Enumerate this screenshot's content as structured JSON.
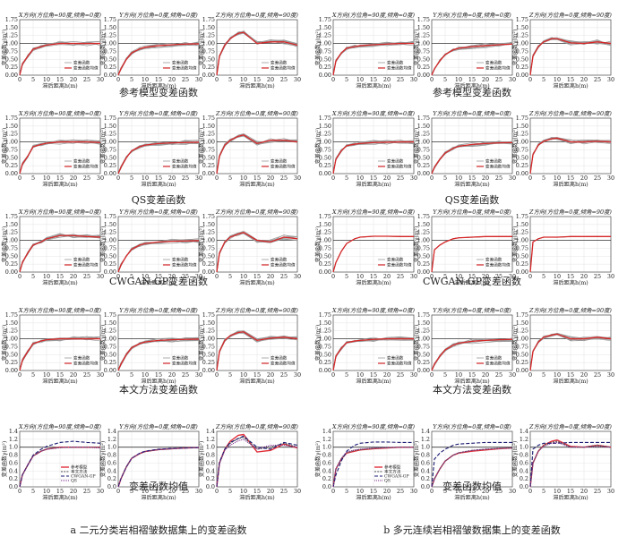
{
  "captions": {
    "left": [
      "参考模型变差函数",
      "QS变差函数",
      "CWGAN-GP变差函数",
      "本文方法变差函数",
      "变差函数均值"
    ],
    "right": [
      "参考模型变差函数",
      "QS变差函数",
      "CWGAN-GP变差函数",
      "本文方法变差函数",
      "变差函数均值"
    ]
  },
  "bottom": {
    "left": "a  二元分类岩相褶皱数据集上的变差函数",
    "right": "b  多元连续岩相褶皱数据集上的变差函数"
  },
  "panel_titles": [
    "X方向(方位角=90度,倾角=0度)",
    "Y方向(方位角=0度,倾角=0度)",
    "Z方向(方位角=0度,倾角=90度)"
  ],
  "axis": {
    "xlabel": "滞后距离h(m)",
    "ylabel": "变差函数γ(m²)",
    "xticks": [
      "0",
      "5",
      "10",
      "15",
      "20",
      "25",
      "30"
    ],
    "yticks_main": [
      "0.00",
      "0.25",
      "0.50",
      "0.75",
      "1.00",
      "1.25",
      "1.50",
      "1.75"
    ],
    "yticks_mean": [
      "0.0",
      "0.2",
      "0.4",
      "0.6",
      "0.8",
      "1.0",
      "1.2",
      "1.4"
    ]
  },
  "legend": {
    "realization": "变差函数",
    "mean": "变差函数均值",
    "mean_series": [
      "参考模型",
      "本文方法",
      "CWGAN-GP",
      "QS"
    ]
  },
  "colors": {
    "realization": "#9a9a9a",
    "mean": "#d62728",
    "reference": "#e0303c",
    "ours": "#555555",
    "cwgan": "#1a1a70",
    "qs": "#7a2a8a"
  },
  "chart_data": [
    {
      "id": "a-ref",
      "type": "line",
      "group": "a",
      "row": "参考模型变差函数",
      "xlim": [
        0,
        30
      ],
      "ylim": [
        0,
        1.75
      ],
      "x": [
        0,
        1,
        3,
        5,
        8,
        10,
        15,
        20,
        25,
        30
      ],
      "panels": [
        {
          "dir": "X",
          "mean": [
            0,
            0.35,
            0.6,
            0.82,
            0.9,
            0.95,
            1.0,
            1.0,
            1.0,
            1.0
          ]
        },
        {
          "dir": "Y",
          "mean": [
            0,
            0.2,
            0.5,
            0.7,
            0.83,
            0.88,
            0.93,
            0.96,
            0.98,
            0.99
          ]
        },
        {
          "dir": "Z",
          "mean": [
            0,
            0.6,
            0.95,
            1.15,
            1.32,
            1.35,
            1.0,
            1.05,
            1.05,
            0.95
          ]
        }
      ]
    },
    {
      "id": "a-qs",
      "type": "line",
      "group": "a",
      "row": "QS变差函数",
      "xlim": [
        0,
        30
      ],
      "ylim": [
        0,
        1.75
      ],
      "x": [
        0,
        1,
        3,
        5,
        8,
        10,
        15,
        20,
        25,
        30
      ],
      "panels": [
        {
          "dir": "X",
          "mean": [
            0,
            0.3,
            0.55,
            0.85,
            0.92,
            0.96,
            1.0,
            1.0,
            1.0,
            0.98
          ]
        },
        {
          "dir": "Y",
          "mean": [
            0,
            0.2,
            0.5,
            0.72,
            0.85,
            0.9,
            0.95,
            0.97,
            0.98,
            0.99
          ]
        },
        {
          "dir": "Z",
          "mean": [
            0,
            0.55,
            0.9,
            1.05,
            1.18,
            1.22,
            0.95,
            1.05,
            1.05,
            1.0
          ]
        }
      ]
    },
    {
      "id": "a-cw",
      "type": "line",
      "group": "a",
      "row": "CWGAN-GP变差函数",
      "xlim": [
        0,
        30
      ],
      "ylim": [
        0,
        1.75
      ],
      "x": [
        0,
        1,
        3,
        5,
        8,
        10,
        15,
        20,
        25,
        30
      ],
      "panels": [
        {
          "dir": "X",
          "mean": [
            0,
            0.3,
            0.6,
            0.85,
            0.95,
            1.05,
            1.15,
            1.15,
            1.12,
            1.1
          ]
        },
        {
          "dir": "Y",
          "mean": [
            0,
            0.22,
            0.5,
            0.72,
            0.85,
            0.9,
            0.95,
            0.97,
            0.98,
            0.99
          ]
        },
        {
          "dir": "Z",
          "mean": [
            0,
            0.6,
            0.95,
            1.1,
            1.2,
            1.25,
            1.0,
            0.95,
            1.1,
            1.05
          ]
        }
      ]
    },
    {
      "id": "a-ours",
      "type": "line",
      "group": "a",
      "row": "本文方法变差函数",
      "xlim": [
        0,
        30
      ],
      "ylim": [
        0,
        1.75
      ],
      "x": [
        0,
        1,
        3,
        5,
        8,
        10,
        15,
        20,
        25,
        30
      ],
      "panels": [
        {
          "dir": "X",
          "mean": [
            0,
            0.32,
            0.6,
            0.85,
            0.93,
            0.97,
            1.0,
            1.0,
            1.0,
            1.0
          ]
        },
        {
          "dir": "Y",
          "mean": [
            0,
            0.2,
            0.5,
            0.72,
            0.85,
            0.9,
            0.95,
            0.97,
            0.98,
            0.99
          ]
        },
        {
          "dir": "Z",
          "mean": [
            0,
            0.6,
            0.95,
            1.1,
            1.2,
            1.22,
            0.95,
            1.02,
            1.05,
            1.0
          ]
        }
      ]
    },
    {
      "id": "b-ref",
      "type": "line",
      "group": "b",
      "row": "参考模型变差函数",
      "xlim": [
        0,
        30
      ],
      "ylim": [
        0,
        1.75
      ],
      "x": [
        0,
        1,
        3,
        5,
        8,
        10,
        15,
        20,
        25,
        30
      ],
      "panels": [
        {
          "dir": "X",
          "mean": [
            0,
            0.45,
            0.7,
            0.85,
            0.9,
            0.93,
            0.96,
            0.98,
            1.0,
            1.0
          ]
        },
        {
          "dir": "Y",
          "mean": [
            0,
            0.2,
            0.45,
            0.65,
            0.8,
            0.85,
            0.9,
            0.93,
            0.96,
            0.98
          ]
        },
        {
          "dir": "Z",
          "mean": [
            0,
            0.6,
            0.9,
            1.05,
            1.15,
            1.15,
            1.02,
            1.0,
            1.05,
            1.0
          ]
        }
      ]
    },
    {
      "id": "b-qs",
      "type": "line",
      "group": "b",
      "row": "QS变差函数",
      "xlim": [
        0,
        30
      ],
      "ylim": [
        0,
        1.75
      ],
      "x": [
        0,
        1,
        3,
        5,
        8,
        10,
        15,
        20,
        25,
        30
      ],
      "panels": [
        {
          "dir": "X",
          "mean": [
            0,
            0.45,
            0.72,
            0.88,
            0.93,
            0.95,
            0.98,
            0.99,
            1.0,
            1.0
          ]
        },
        {
          "dir": "Y",
          "mean": [
            0,
            0.2,
            0.45,
            0.65,
            0.8,
            0.86,
            0.92,
            0.95,
            0.97,
            0.98
          ]
        },
        {
          "dir": "Z",
          "mean": [
            0,
            0.6,
            0.9,
            1.02,
            1.1,
            1.12,
            1.0,
            1.0,
            1.02,
            1.0
          ]
        }
      ]
    },
    {
      "id": "b-cw",
      "type": "line",
      "group": "b",
      "row": "CWGAN-GP变差函数",
      "xlim": [
        0,
        30
      ],
      "ylim": [
        0,
        1.75
      ],
      "x": [
        0,
        1,
        3,
        5,
        8,
        10,
        15,
        20,
        25,
        30
      ],
      "panels": [
        {
          "dir": "X",
          "mean": [
            0,
            0.3,
            0.65,
            0.9,
            1.05,
            1.1,
            1.13,
            1.13,
            1.12,
            1.12
          ]
        },
        {
          "dir": "Y",
          "mean": [
            0,
            0.7,
            0.85,
            0.95,
            1.05,
            1.08,
            1.1,
            1.12,
            1.12,
            1.12
          ]
        },
        {
          "dir": "Z",
          "mean": [
            0,
            0.95,
            1.05,
            1.1,
            1.1,
            1.1,
            1.12,
            1.12,
            1.12,
            1.12
          ]
        }
      ]
    },
    {
      "id": "b-ours",
      "type": "line",
      "group": "b",
      "row": "本文方法变差函数",
      "xlim": [
        0,
        30
      ],
      "ylim": [
        0,
        1.75
      ],
      "x": [
        0,
        1,
        3,
        5,
        8,
        10,
        15,
        20,
        25,
        30
      ],
      "panels": [
        {
          "dir": "X",
          "mean": [
            0,
            0.45,
            0.7,
            0.88,
            0.93,
            0.95,
            0.98,
            1.0,
            1.0,
            1.0
          ]
        },
        {
          "dir": "Y",
          "mean": [
            0,
            0.2,
            0.45,
            0.65,
            0.8,
            0.86,
            0.92,
            0.95,
            0.97,
            0.98
          ]
        },
        {
          "dir": "Z",
          "mean": [
            0,
            0.6,
            0.9,
            1.05,
            1.12,
            1.15,
            1.0,
            1.0,
            1.05,
            1.0
          ]
        }
      ]
    },
    {
      "id": "a-mean",
      "type": "line",
      "group": "a",
      "row": "变差函数均值",
      "xlim": [
        0,
        30
      ],
      "ylim": [
        0,
        1.4
      ],
      "x": [
        0,
        1,
        3,
        5,
        8,
        10,
        15,
        20,
        25,
        30
      ],
      "panels": [
        {
          "dir": "X",
          "series": [
            {
              "name": "参考模型",
              "values": [
                0,
                0.3,
                0.55,
                0.78,
                0.9,
                0.95,
                1.0,
                1.0,
                1.0,
                1.0
              ]
            },
            {
              "name": "本文方法",
              "values": [
                0,
                0.3,
                0.55,
                0.78,
                0.9,
                0.95,
                0.99,
                1.0,
                1.0,
                1.0
              ]
            },
            {
              "name": "CWGAN-GP",
              "values": [
                0,
                0.3,
                0.55,
                0.8,
                0.95,
                1.02,
                1.12,
                1.15,
                1.12,
                1.1
              ]
            },
            {
              "name": "QS",
              "values": [
                0,
                0.3,
                0.55,
                0.78,
                0.9,
                0.95,
                0.99,
                1.0,
                1.0,
                0.98
              ]
            }
          ]
        },
        {
          "dir": "Y",
          "series": [
            {
              "name": "参考模型",
              "values": [
                0,
                0.2,
                0.5,
                0.72,
                0.84,
                0.89,
                0.94,
                0.96,
                0.98,
                0.99
              ]
            },
            {
              "name": "本文方法",
              "values": [
                0,
                0.2,
                0.5,
                0.72,
                0.84,
                0.89,
                0.94,
                0.96,
                0.98,
                0.99
              ]
            },
            {
              "name": "CWGAN-GP",
              "values": [
                0,
                0.21,
                0.5,
                0.72,
                0.85,
                0.9,
                0.95,
                0.97,
                0.98,
                0.99
              ]
            },
            {
              "name": "QS",
              "values": [
                0,
                0.2,
                0.5,
                0.72,
                0.84,
                0.89,
                0.94,
                0.96,
                0.98,
                0.99
              ]
            }
          ]
        },
        {
          "dir": "Z",
          "series": [
            {
              "name": "参考模型",
              "values": [
                0,
                0.6,
                0.95,
                1.15,
                1.3,
                1.32,
                0.88,
                0.92,
                1.08,
                0.98
              ]
            },
            {
              "name": "本文方法",
              "values": [
                0,
                0.6,
                0.95,
                1.1,
                1.22,
                1.25,
                0.95,
                1.0,
                1.1,
                1.0
              ]
            },
            {
              "name": "CWGAN-GP",
              "values": [
                0,
                0.62,
                0.95,
                1.12,
                1.22,
                1.28,
                1.0,
                0.95,
                1.12,
                1.05
              ]
            },
            {
              "name": "QS",
              "values": [
                0,
                0.58,
                0.92,
                1.05,
                1.16,
                1.2,
                0.95,
                1.05,
                1.05,
                1.0
              ]
            }
          ]
        }
      ]
    },
    {
      "id": "b-mean",
      "type": "line",
      "group": "b",
      "row": "变差函数均值",
      "xlim": [
        0,
        30
      ],
      "ylim": [
        0,
        1.4
      ],
      "x": [
        0,
        1,
        3,
        5,
        8,
        10,
        15,
        20,
        25,
        30
      ],
      "panels": [
        {
          "dir": "X",
          "series": [
            {
              "name": "参考模型",
              "values": [
                0,
                0.45,
                0.7,
                0.85,
                0.9,
                0.93,
                0.96,
                0.98,
                1.0,
                1.0
              ]
            },
            {
              "name": "本文方法",
              "values": [
                0,
                0.45,
                0.7,
                0.86,
                0.92,
                0.94,
                0.97,
                0.99,
                1.0,
                1.0
              ]
            },
            {
              "name": "CWGAN-GP",
              "values": [
                0,
                0.3,
                0.65,
                0.9,
                1.05,
                1.1,
                1.13,
                1.13,
                1.12,
                1.12
              ]
            },
            {
              "name": "QS",
              "values": [
                0,
                0.45,
                0.72,
                0.88,
                0.93,
                0.95,
                0.98,
                0.99,
                1.0,
                1.0
              ]
            }
          ]
        },
        {
          "dir": "Y",
          "series": [
            {
              "name": "参考模型",
              "values": [
                0,
                0.2,
                0.45,
                0.65,
                0.8,
                0.85,
                0.9,
                0.93,
                0.96,
                0.98
              ]
            },
            {
              "name": "本文方法",
              "values": [
                0,
                0.2,
                0.45,
                0.65,
                0.8,
                0.86,
                0.92,
                0.95,
                0.97,
                0.98
              ]
            },
            {
              "name": "CWGAN-GP",
              "values": [
                0,
                0.7,
                0.85,
                0.95,
                1.05,
                1.08,
                1.1,
                1.12,
                1.12,
                1.12
              ]
            },
            {
              "name": "QS",
              "values": [
                0,
                0.2,
                0.45,
                0.65,
                0.8,
                0.86,
                0.92,
                0.95,
                0.97,
                0.98
              ]
            }
          ]
        },
        {
          "dir": "Z",
          "series": [
            {
              "name": "参考模型",
              "values": [
                0,
                0.6,
                0.9,
                1.05,
                1.15,
                1.18,
                1.02,
                1.0,
                1.05,
                1.0
              ]
            },
            {
              "name": "本文方法",
              "values": [
                0,
                0.6,
                0.9,
                1.05,
                1.12,
                1.15,
                1.0,
                1.0,
                1.05,
                1.0
              ]
            },
            {
              "name": "CWGAN-GP",
              "values": [
                0,
                0.95,
                1.05,
                1.1,
                1.1,
                1.1,
                1.12,
                1.12,
                1.12,
                1.12
              ]
            },
            {
              "name": "QS",
              "values": [
                0,
                0.6,
                0.9,
                1.02,
                1.1,
                1.12,
                1.0,
                1.0,
                1.02,
                1.0
              ]
            }
          ]
        }
      ]
    }
  ]
}
